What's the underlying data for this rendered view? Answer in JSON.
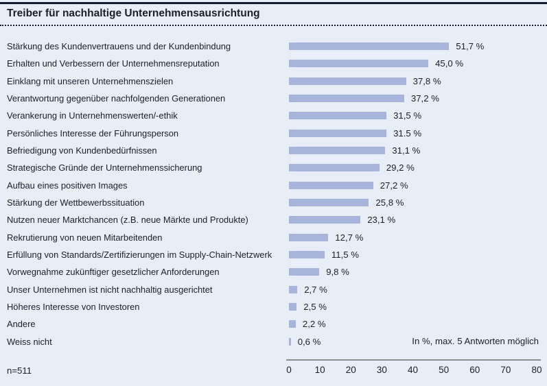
{
  "header": {
    "title": "Treiber für nachhaltige Unternehmensausrichtung"
  },
  "footer": {
    "n_label": "n=511",
    "note": "In %, max. 5 Antworten möglich"
  },
  "colors": {
    "background": "#e8eef7",
    "bar": "#a8b5da",
    "rule": "#131a31",
    "axis_line": "#8d8d8d",
    "text": "#1c1f26"
  },
  "chart_data": {
    "type": "bar",
    "orientation": "horizontal",
    "title": "Treiber für nachhaltige Unternehmensausrichtung",
    "categories": [
      "Stärkung des Kundenvertrauens und der Kundenbindung",
      "Erhalten und Verbessern der Unternehmensreputation",
      "Einklang mit unseren Unternehmenszielen",
      "Verantwortung gegenüber nachfolgenden Generationen",
      "Verankerung in Unternehmenswerten/-ethik",
      "Persönliches Interesse der Führungsperson",
      "Befriedigung von Kundenbedürfnissen",
      "Strategische Gründe der Unternehmenssicherung",
      "Aufbau eines positiven Images",
      "Stärkung der Wettbewerbssituation",
      "Nutzen neuer Marktchancen (z.B. neue Märkte und Produkte)",
      "Rekrutierung von neuen Mitarbeitenden",
      "Erfüllung von Standards/Zertifizierungen im Supply-Chain-Netzwerk",
      "Vorwegnahme zukünftiger gesetzlicher Anforderungen",
      "Unser Unternehmen ist nicht nachhaltig ausgerichtet",
      "Höheres Interesse von Investoren",
      "Andere",
      "Weiss nicht"
    ],
    "values": [
      51.7,
      45.0,
      37.8,
      37.2,
      31.5,
      31.5,
      31.1,
      29.2,
      27.2,
      25.8,
      23.1,
      12.7,
      11.5,
      9.8,
      2.7,
      2.5,
      2.2,
      0.6
    ],
    "value_labels": [
      "51,7 %",
      "45,0 %",
      "37,8 %",
      "37,2 %",
      "31,5 %",
      "31.5 %",
      "31,1 %",
      "29,2 %",
      "27,2 %",
      "25,8 %",
      "23,1 %",
      "12,7 %",
      "11,5 %",
      "9,8 %",
      "2,7 %",
      "2,5 %",
      "2,2 %",
      "0,6 %"
    ],
    "xlabel": "",
    "ylabel": "",
    "xlim": [
      0,
      80
    ],
    "xticks": [
      0,
      10,
      20,
      30,
      40,
      50,
      60,
      70,
      80
    ],
    "grid": false,
    "legend_position": "none",
    "note": "In %, max. 5 Antworten möglich",
    "sample_size": "n=511"
  }
}
